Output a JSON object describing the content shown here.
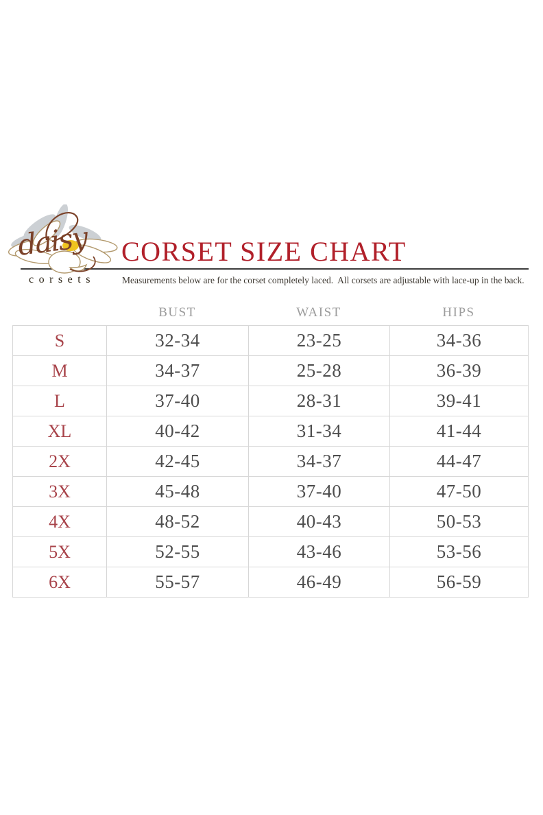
{
  "logo": {
    "script_text": "daisy",
    "sub_text": "corsets"
  },
  "header": {
    "title": "CORSET SIZE CHART",
    "subtitle": "Measurements below are for the corset completely laced.  All corsets are adjustable with lace-up in the back."
  },
  "chart_data": {
    "type": "table",
    "title": "CORSET SIZE CHART",
    "subtitle": "Measurements below are for the corset completely laced.  All corsets are adjustable with lace-up in the back.",
    "columns": [
      "BUST",
      "WAIST",
      "HIPS"
    ],
    "rows": [
      [
        "S",
        "32-34",
        "23-25",
        "34-36"
      ],
      [
        "M",
        "34-37",
        "25-28",
        "36-39"
      ],
      [
        "L",
        "37-40",
        "28-31",
        "39-41"
      ],
      [
        "XL",
        "40-42",
        "31-34",
        "41-44"
      ],
      [
        "2X",
        "42-45",
        "34-37",
        "44-47"
      ],
      [
        "3X",
        "45-48",
        "37-40",
        "47-50"
      ],
      [
        "4X",
        "48-52",
        "40-43",
        "50-53"
      ],
      [
        "5X",
        "52-55",
        "43-46",
        "53-56"
      ],
      [
        "6X",
        "55-57",
        "46-49",
        "56-59"
      ]
    ]
  },
  "colors": {
    "title_red": "#b1202a",
    "size_red": "#a8434a",
    "value_gray": "#4d4d4d",
    "header_gray": "#9c9c9c",
    "table_border": "#d7d7d7",
    "rule_dark": "#3c3c3c",
    "logo_script_brown": "#7b4128",
    "logo_petal_outline": "#b39a6e",
    "logo_petal_shadow": "#ccd0d4",
    "logo_center_yellow": "#f0c41f",
    "logo_sub_text": "#2c2416"
  }
}
